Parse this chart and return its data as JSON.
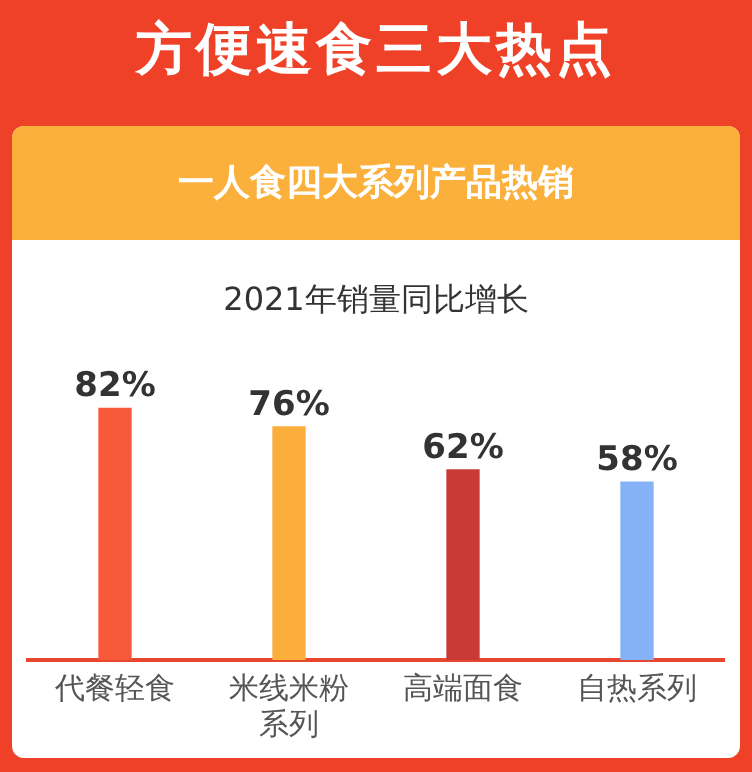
{
  "chart_data": {
    "type": "bar",
    "title": "方便速食三大热点",
    "subtitle": "一人食四大系列产品热销",
    "annotations": [
      "2021年销量同比增长"
    ],
    "categories": [
      "代餐轻食",
      "米线米粉系列",
      "高端面食",
      "自热系列"
    ],
    "values": [
      82,
      76,
      62,
      58
    ],
    "colors": [
      "#f75a3a",
      "#fbae3c",
      "#c93935",
      "#85b1f7"
    ],
    "value_labels": [
      "82%",
      "76%",
      "62%",
      "58%"
    ],
    "grid": false,
    "legend": false
  }
}
